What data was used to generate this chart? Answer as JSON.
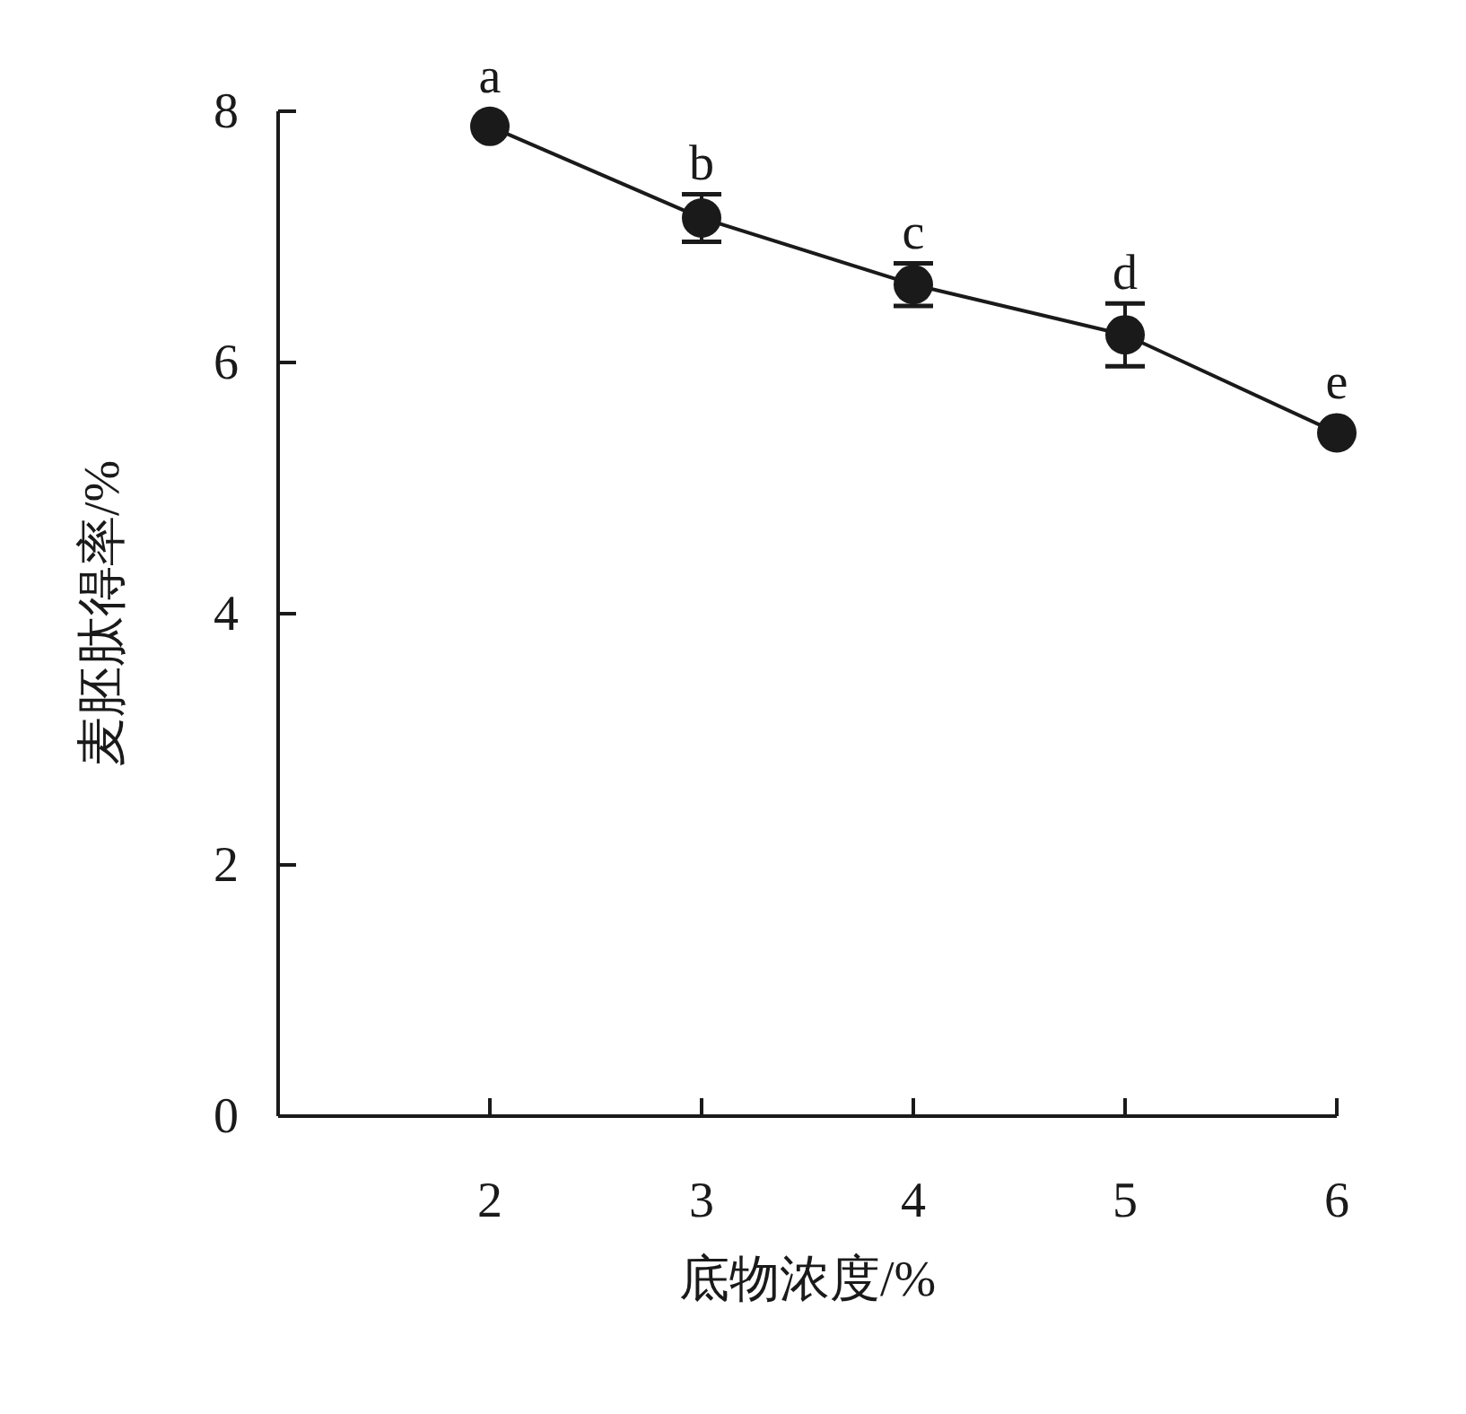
{
  "chart_data": {
    "type": "line",
    "xlabel": "底物浓度/%",
    "ylabel": "麦胚肽得率/%",
    "x": [
      2,
      3,
      4,
      5,
      6
    ],
    "series": [
      {
        "color": "#1a1a1a",
        "values": [
          7.88,
          7.15,
          6.62,
          6.22,
          5.44
        ],
        "errors": [
          null,
          0.19,
          0.17,
          0.25,
          null
        ]
      }
    ],
    "xlim": [
      1,
      6
    ],
    "xticks": [
      2,
      3,
      4,
      5,
      6
    ],
    "ylim": [
      0,
      8
    ],
    "yticks": [
      0,
      2,
      4,
      6,
      8
    ],
    "marker": "circle",
    "line_style": "solid",
    "grid": false,
    "annotations": [
      {
        "text": "a",
        "x": 2,
        "y": 7.88
      },
      {
        "text": "b",
        "x": 3,
        "y": 7.15
      },
      {
        "text": "c",
        "x": 4,
        "y": 6.62
      },
      {
        "text": "d",
        "x": 5,
        "y": 6.22
      },
      {
        "text": "e",
        "x": 6,
        "y": 5.44
      }
    ]
  }
}
